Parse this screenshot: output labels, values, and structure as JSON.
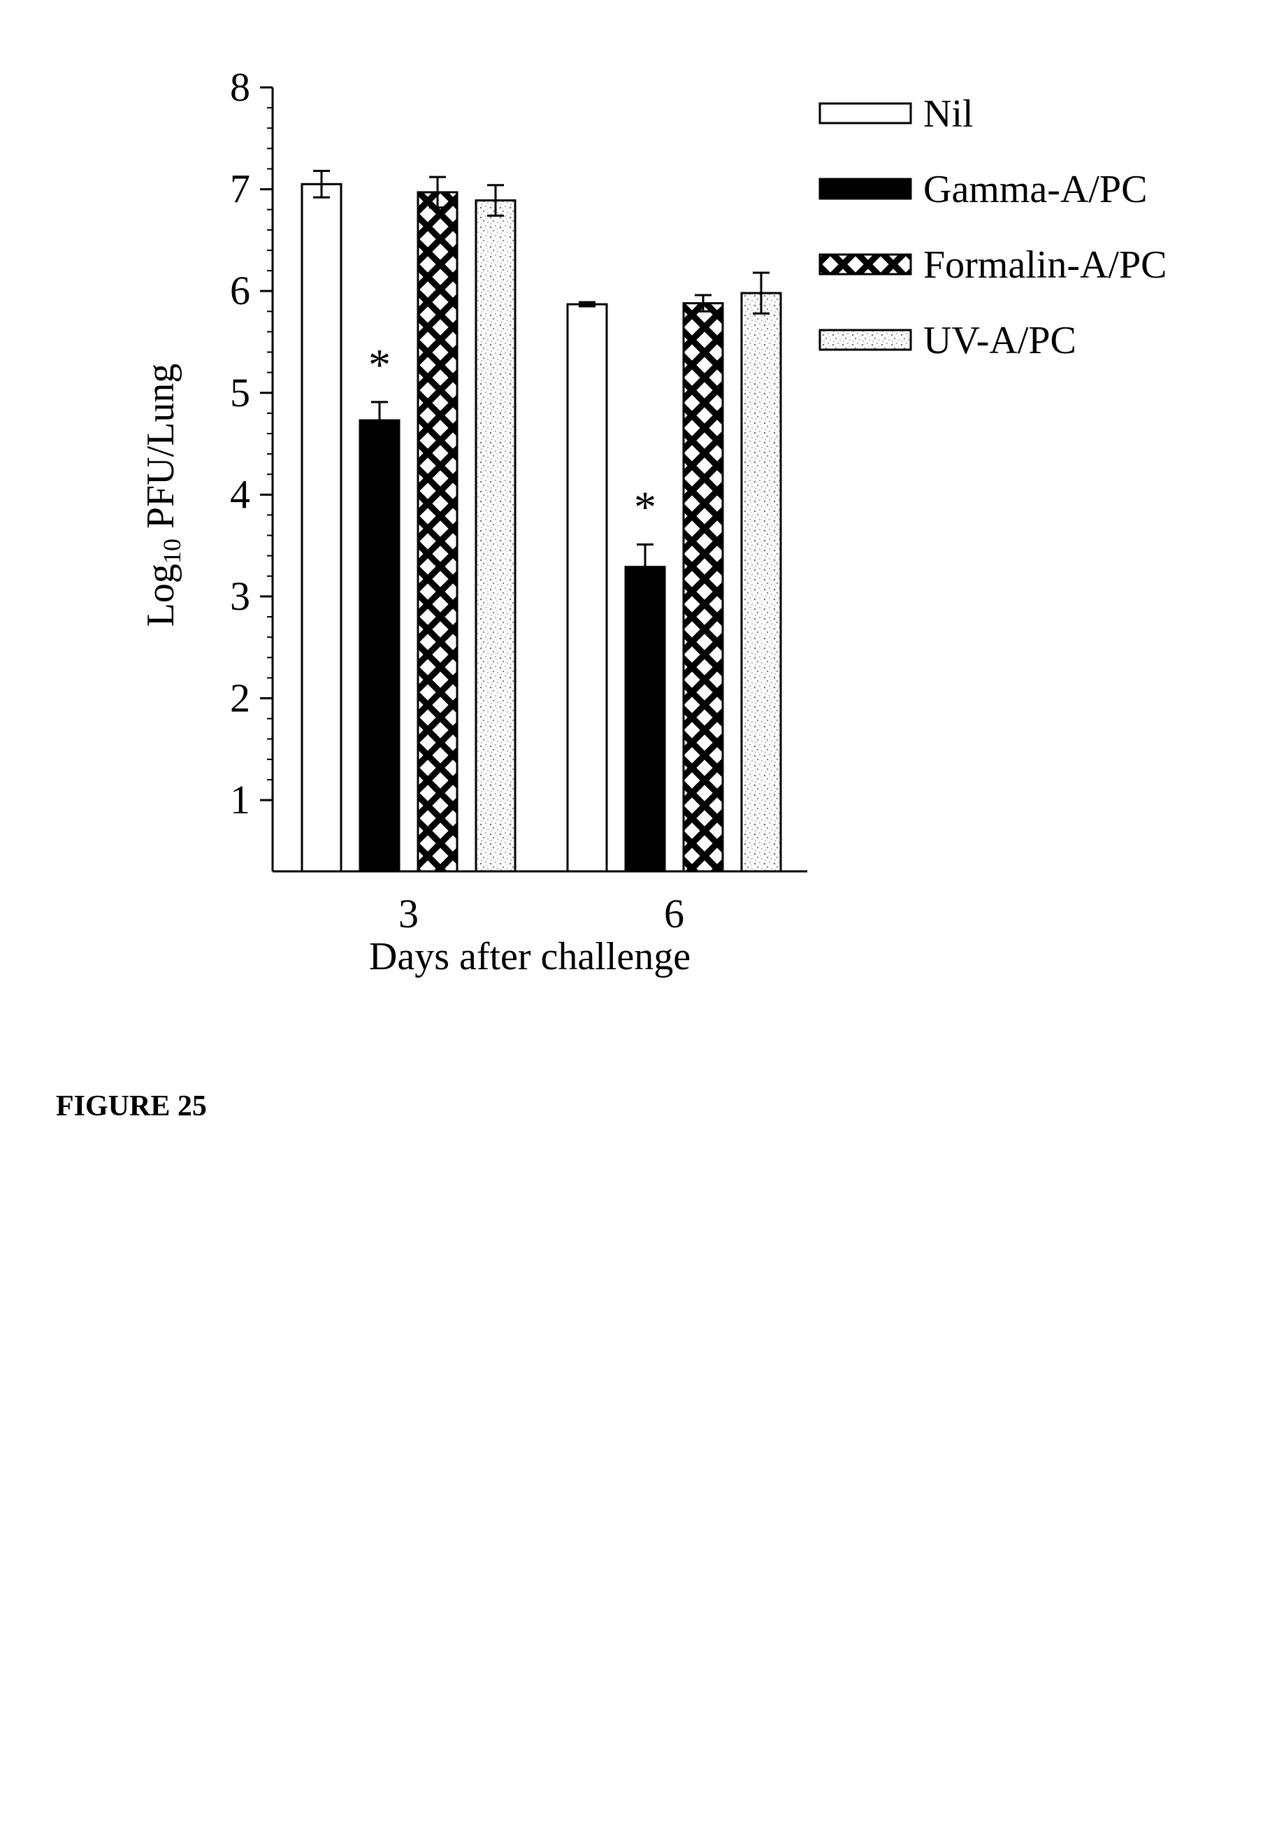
{
  "figure": {
    "label": "FIGURE 25"
  },
  "chart_data": {
    "type": "bar",
    "title": "",
    "xlabel": "Days after challenge",
    "ylabel_main": "Log",
    "ylabel_sub": "10",
    "ylabel_rest": " PFU/Lung",
    "ylim": [
      0.3,
      8
    ],
    "yticks": [
      1,
      2,
      3,
      4,
      5,
      6,
      7,
      8
    ],
    "categories": [
      "3",
      "6"
    ],
    "series": [
      {
        "name": "Nil",
        "pattern": "open",
        "values": [
          7.05,
          5.87
        ],
        "errors": [
          0.13,
          0.02
        ]
      },
      {
        "name": "Gamma-A/PC",
        "pattern": "solid",
        "values": [
          4.73,
          3.29
        ],
        "errors": [
          0.18,
          0.22
        ]
      },
      {
        "name": "Formalin-A/PC",
        "pattern": "crosshatch",
        "values": [
          6.97,
          5.88
        ],
        "errors": [
          0.15,
          0.08
        ]
      },
      {
        "name": "UV-A/PC",
        "pattern": "stipple",
        "values": [
          6.89,
          5.98
        ],
        "errors": [
          0.15,
          0.2
        ]
      }
    ],
    "annotations": [
      {
        "category": "3",
        "series": "Gamma-A/PC",
        "text": "*"
      },
      {
        "category": "6",
        "series": "Gamma-A/PC",
        "text": "*"
      }
    ],
    "grid": false,
    "legend_position": "top-right",
    "colors": {
      "ink": "#000000",
      "background": "#ffffff",
      "stipple_dark": "#777777",
      "stipple_light": "#bbbbbb"
    }
  }
}
